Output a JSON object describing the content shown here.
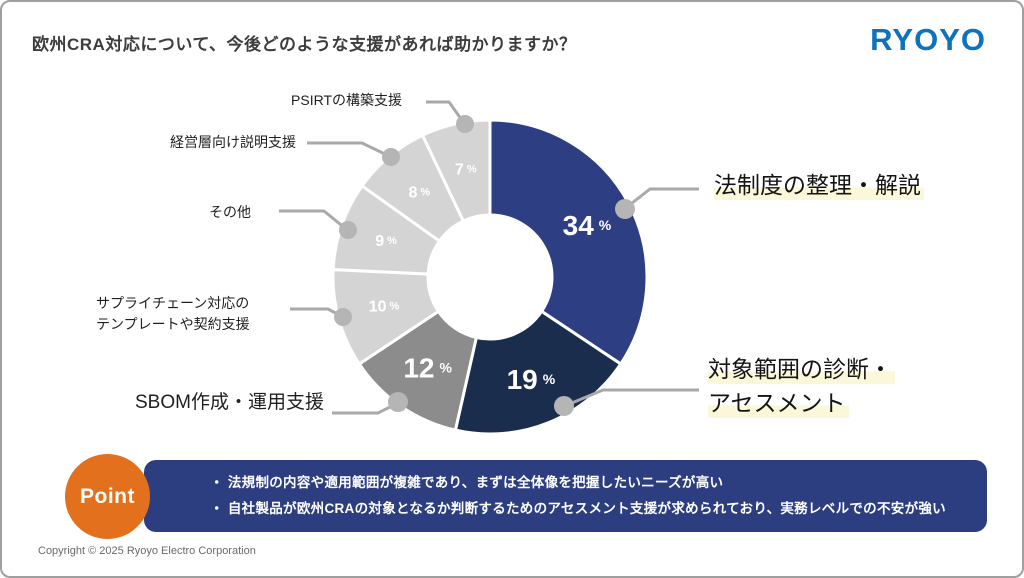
{
  "slide": {
    "title": "欧州CRA対応について、今後どのような支援があれば助かりますか？",
    "logo": "RYOYO",
    "copyright": "Copyright © 2025 Ryoyo Electro Corporation"
  },
  "chart_data": {
    "type": "pie",
    "style": "donut",
    "title": "欧州CRA対応について、今後どのような支援があれば助かりますか？",
    "unit": "%",
    "donut_hole_ratio": 0.4,
    "legend_position": "callout-labels",
    "slices": [
      {
        "label": "法制度の整理・解説",
        "value": 34,
        "color": "#2d3f82",
        "highlighted": true
      },
      {
        "label": "対象範囲の診断・\nアセスメント",
        "value": 19,
        "color": "#1a2d4d",
        "highlighted": true
      },
      {
        "label": "SBOM作成・運用支援",
        "value": 12,
        "color": "#8c8c8c",
        "highlighted": false
      },
      {
        "label": "サプライチェーン対応の\nテンプレートや契約支援",
        "value": 10,
        "color": "#d4d4d4",
        "highlighted": false
      },
      {
        "label": "その他",
        "value": 9,
        "color": "#d4d4d4",
        "highlighted": false
      },
      {
        "label": "経営層向け説明支援",
        "value": 8,
        "color": "#d4d4d4",
        "highlighted": false
      },
      {
        "label": "PSIRTの構築支援",
        "value": 7,
        "color": "#d4d4d4",
        "highlighted": false
      }
    ]
  },
  "point": {
    "badge": "Point",
    "bullets": [
      "法規制の内容や適用範囲が複雑であり、まずは全体像を把握したいニーズが高い",
      "自社製品が欧州CRAの対象となるか判断するためのアセスメント支援が求められており、実務レベルでの不安が強い"
    ]
  },
  "colors": {
    "banner_navy": "#2d3e80",
    "point_orange": "#e2701c",
    "logo_blue": "#0e72bd",
    "highlight_yellow": "#fbf8da",
    "leader_gray": "#a9a9a9",
    "leader_dot_gray": "#b5b5b5"
  }
}
